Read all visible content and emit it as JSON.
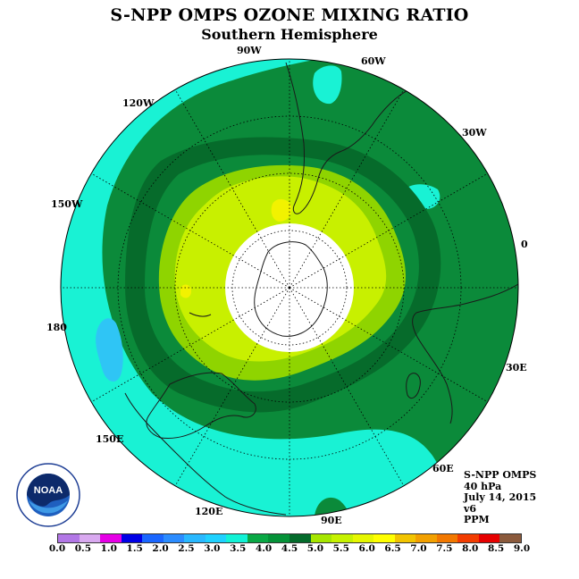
{
  "title": "S-NPP OMPS OZONE MIXING RATIO",
  "subtitle": "Southern Hemisphere",
  "info": {
    "instrument": "S-NPP OMPS",
    "level": "40 hPa",
    "date": "July 14, 2015",
    "version": "v6",
    "units": "PPM"
  },
  "longitude_labels": {
    "w90": "90W",
    "w60": "60W",
    "w30": "30W",
    "zero": "0",
    "e30": "30E",
    "e60": "60E",
    "e90": "90E",
    "e120": "120E",
    "e150": "150E",
    "lon180": "180",
    "w150": "150W",
    "w120": "120W"
  },
  "logo": {
    "name": "noaa-logo",
    "text": "NOAA"
  },
  "colorbar": {
    "colors": [
      "#b277e6",
      "#d9a9f0",
      "#e600e6",
      "#0000e6",
      "#1a66ff",
      "#2b8cff",
      "#29b8ff",
      "#1fd1ff",
      "#12f2d6",
      "#0aa845",
      "#059238",
      "#046b2b",
      "#a6e600",
      "#c6f200",
      "#e6f700",
      "#ffff00",
      "#f2c400",
      "#f2a000",
      "#f27800",
      "#f23c00",
      "#e60000",
      "#8b5a3c"
    ],
    "ticks": [
      "0.0",
      "0.5",
      "1.0",
      "1.5",
      "2.0",
      "2.5",
      "3.0",
      "3.5",
      "4.0",
      "4.5",
      "5.0",
      "5.5",
      "6.0",
      "6.5",
      "7.0",
      "7.5",
      "8.0",
      "8.5",
      "9.0"
    ]
  },
  "map_colors": {
    "cyan": "#19f2d4",
    "light_blue": "#2fc5f5",
    "green": "#0b8a3a",
    "dark_green": "#066b2b",
    "lime": "#8fd400",
    "yellow_green": "#c8f000",
    "yellow": "#f2f200"
  }
}
